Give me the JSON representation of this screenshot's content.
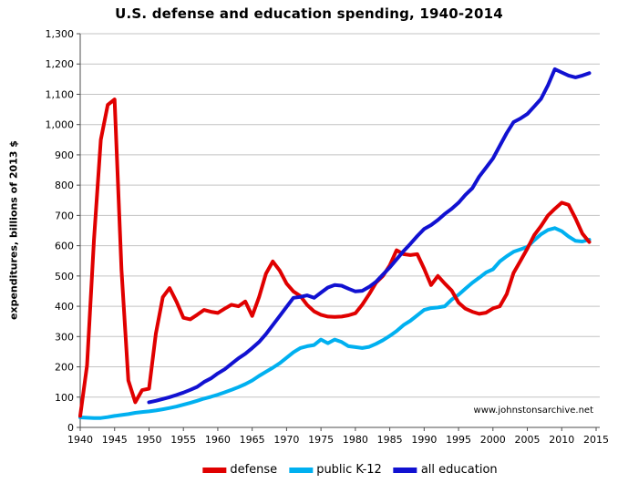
{
  "chart_data": {
    "type": "line",
    "title": "U.S. defense and education spending, 1940-2014",
    "ylabel": "expenditures, billions of 2013  $",
    "xlabel": "",
    "watermark": "www.johnstonsarchive.net",
    "xlim": [
      1940,
      2015
    ],
    "ylim": [
      0,
      1300
    ],
    "x_ticks": [
      1940,
      1945,
      1950,
      1955,
      1960,
      1965,
      1970,
      1975,
      1980,
      1985,
      1990,
      1995,
      2000,
      2005,
      2010,
      2015
    ],
    "y_ticks": [
      0,
      100,
      200,
      300,
      400,
      500,
      600,
      700,
      800,
      900,
      1000,
      1100,
      1200,
      1300
    ],
    "y_tick_labels": [
      "0",
      "100",
      "200",
      "300",
      "400",
      "500",
      "600",
      "700",
      "800",
      "900",
      "1,000",
      "1,100",
      "1,200",
      "1,300"
    ],
    "grid": "horizontal",
    "grid_color": "#c3c3c3",
    "axis_color": "#4d4d4d",
    "legend_position": "bottom",
    "series": [
      {
        "name": "defense",
        "color": "#e00000",
        "start_year": 1940,
        "end_year": 2014,
        "values": [
          38,
          205,
          620,
          950,
          1065,
          1083,
          520,
          155,
          83,
          123,
          128,
          310,
          430,
          460,
          415,
          362,
          357,
          372,
          388,
          382,
          378,
          392,
          405,
          400,
          416,
          368,
          430,
          508,
          548,
          518,
          475,
          449,
          434,
          404,
          383,
          372,
          366,
          365,
          366,
          370,
          377,
          405,
          440,
          478,
          500,
          535,
          585,
          572,
          569,
          572,
          524,
          470,
          500,
          475,
          452,
          412,
          392,
          382,
          375,
          379,
          393,
          400,
          440,
          510,
          550,
          590,
          635,
          665,
          700,
          722,
          742,
          735,
          690,
          640,
          612
        ]
      },
      {
        "name": "public K-12",
        "color": "#00b0f0",
        "start_year": 1940,
        "end_year": 2014,
        "values": [
          33,
          32,
          31,
          31,
          34,
          38,
          41,
          44,
          48,
          51,
          53,
          56,
          60,
          64,
          69,
          75,
          81,
          88,
          95,
          101,
          108,
          116,
          124,
          133,
          143,
          155,
          170,
          184,
          197,
          212,
          230,
          248,
          262,
          268,
          272,
          290,
          278,
          290,
          282,
          268,
          265,
          262,
          266,
          276,
          288,
          302,
          318,
          338,
          352,
          370,
          388,
          394,
          396,
          400,
          422,
          438,
          458,
          478,
          494,
          512,
          522,
          548,
          565,
          580,
          588,
          596,
          618,
          638,
          652,
          658,
          648,
          630,
          616,
          614,
          620
        ]
      },
      {
        "name": "all education",
        "color": "#1111d1",
        "start_year": 1950,
        "end_year": 2014,
        "values": [
          83,
          88,
          94,
          100,
          107,
          115,
          124,
          134,
          150,
          162,
          178,
          192,
          210,
          228,
          243,
          262,
          282,
          308,
          338,
          368,
          398,
          428,
          431,
          436,
          428,
          445,
          462,
          470,
          468,
          458,
          449,
          451,
          464,
          481,
          505,
          528,
          555,
          582,
          606,
          632,
          655,
          668,
          685,
          705,
          722,
          742,
          768,
          790,
          828,
          858,
          888,
          930,
          972,
          1008,
          1020,
          1035,
          1060,
          1085,
          1130,
          1183,
          1172,
          1162,
          1156,
          1162,
          1170
        ]
      }
    ],
    "draw_order": [
      1,
      0,
      2
    ],
    "line_width": 4
  }
}
